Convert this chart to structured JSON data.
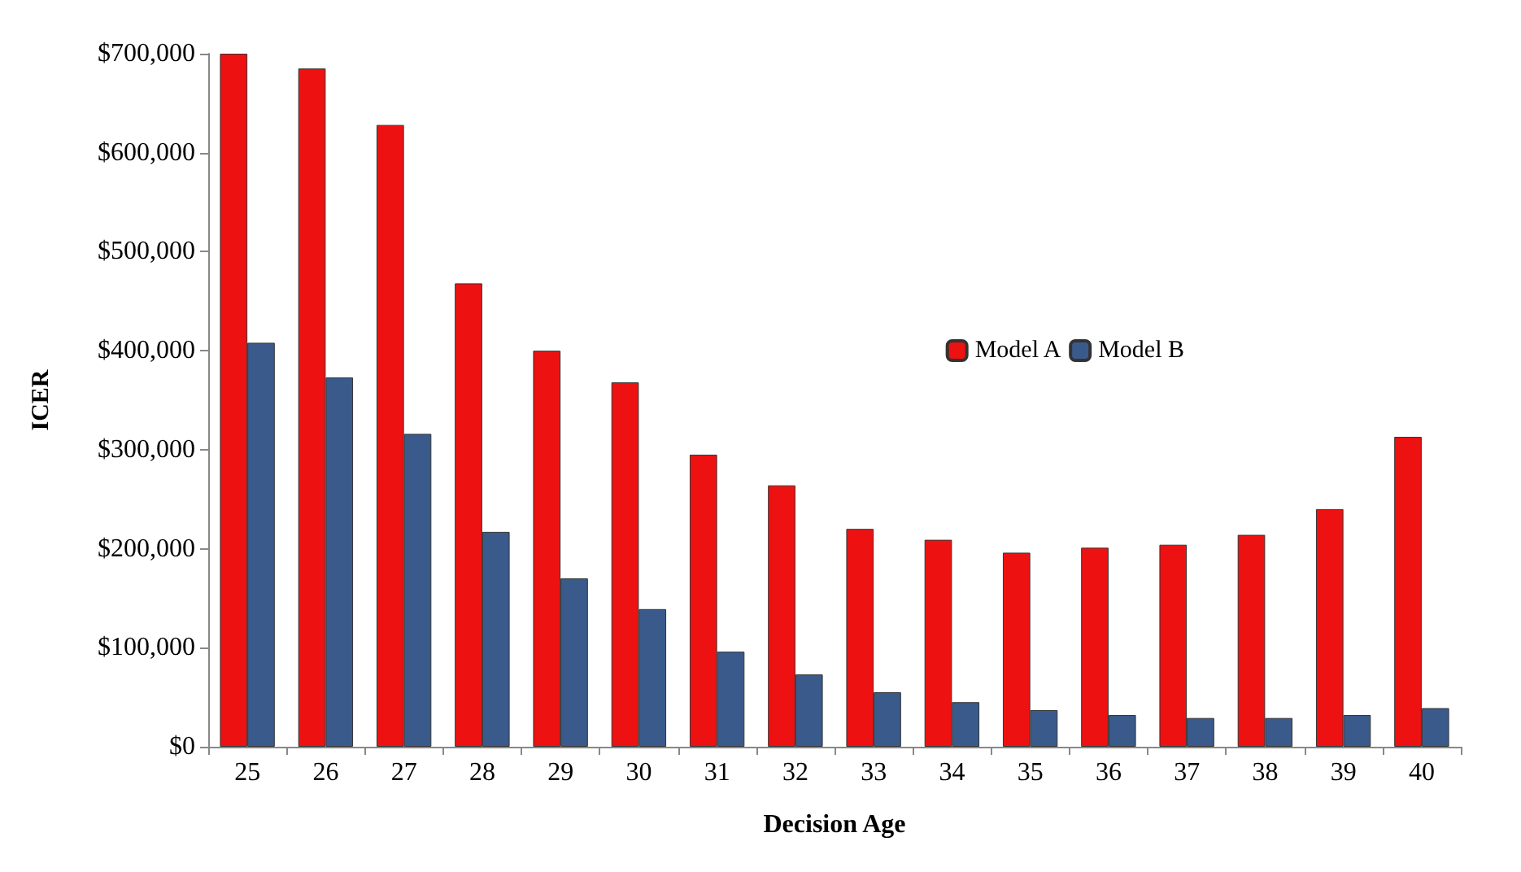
{
  "chart_data": {
    "type": "bar",
    "xlabel": "Decision Age",
    "ylabel": "ICER",
    "categories": [
      "25",
      "26",
      "27",
      "28",
      "29",
      "30",
      "31",
      "32",
      "33",
      "34",
      "35",
      "36",
      "37",
      "38",
      "39",
      "40"
    ],
    "series": [
      {
        "name": "Model A",
        "color": "#ee1111",
        "values": [
          700000,
          685000,
          628000,
          468000,
          400000,
          368000,
          295000,
          264000,
          220000,
          209000,
          196000,
          201000,
          204000,
          214000,
          240000,
          313000
        ]
      },
      {
        "name": "Model B",
        "color": "#3a5a8c",
        "values": [
          408000,
          373000,
          316000,
          217000,
          170000,
          139000,
          96000,
          73000,
          55000,
          45000,
          37000,
          32000,
          29000,
          29000,
          32000,
          39000
        ]
      }
    ],
    "ylim": [
      0,
      700000
    ],
    "yticks": [
      {
        "value": 0,
        "label": "$0"
      },
      {
        "value": 100000,
        "label": "$100,000"
      },
      {
        "value": 200000,
        "label": "$200,000"
      },
      {
        "value": 300000,
        "label": "$300,000"
      },
      {
        "value": 400000,
        "label": "$400,000"
      },
      {
        "value": 500000,
        "label": "$500,000"
      },
      {
        "value": 600000,
        "label": "$600,000"
      },
      {
        "value": 700000,
        "label": "$700,000"
      }
    ],
    "grid": false,
    "legend": "right"
  }
}
